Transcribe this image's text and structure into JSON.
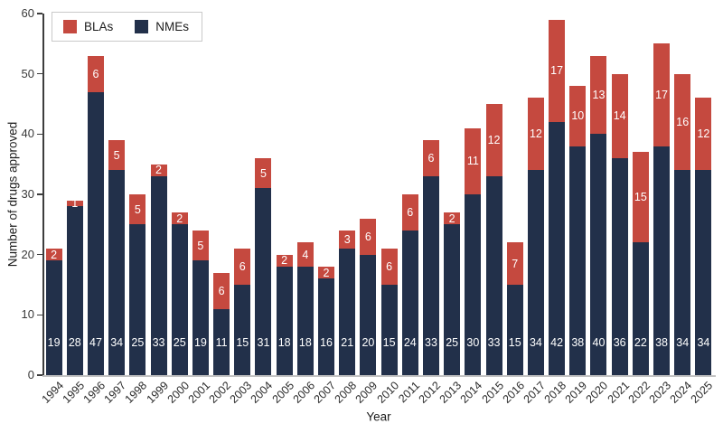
{
  "figure": {
    "xlabel": "Year",
    "ylabel": "Number of drugs approved"
  },
  "chart_data": {
    "type": "bar",
    "stacked": true,
    "title": "",
    "xlabel": "Year",
    "ylabel": "Number of drugs approved",
    "ylim": [
      0,
      60
    ],
    "yticks": [
      0,
      10,
      20,
      30,
      40,
      50,
      60
    ],
    "grid": false,
    "legend_position": "upper-left",
    "bar_value_labels": "white numbers on each segment",
    "stack_order": [
      "NMEs",
      "BLAs"
    ],
    "categories": [
      "1994",
      "1995",
      "1996",
      "1997",
      "1998",
      "1999",
      "2000",
      "2001",
      "2002",
      "2003",
      "2004",
      "2005",
      "2006",
      "2007",
      "2008",
      "2009",
      "2010",
      "2011",
      "2012",
      "2013",
      "2014",
      "2015",
      "2016",
      "2017",
      "2018",
      "2019",
      "2020",
      "2021",
      "2022",
      "2023",
      "2024",
      "2025"
    ],
    "series": [
      {
        "name": "BLAs",
        "color": "#C5493F",
        "label_color": "#FFFFFF",
        "values": [
          2,
          1,
          6,
          5,
          5,
          2,
          2,
          5,
          6,
          6,
          5,
          2,
          4,
          2,
          3,
          6,
          6,
          6,
          6,
          2,
          11,
          12,
          7,
          12,
          17,
          10,
          13,
          14,
          15,
          17,
          16,
          12
        ]
      },
      {
        "name": "NMEs",
        "color": "#22304A",
        "label_color": "#FFFFFF",
        "values": [
          19,
          28,
          47,
          34,
          25,
          33,
          25,
          19,
          11,
          15,
          31,
          18,
          18,
          16,
          21,
          20,
          15,
          24,
          33,
          25,
          30,
          33,
          15,
          34,
          42,
          38,
          40,
          36,
          22,
          38,
          34,
          34
        ]
      }
    ]
  }
}
